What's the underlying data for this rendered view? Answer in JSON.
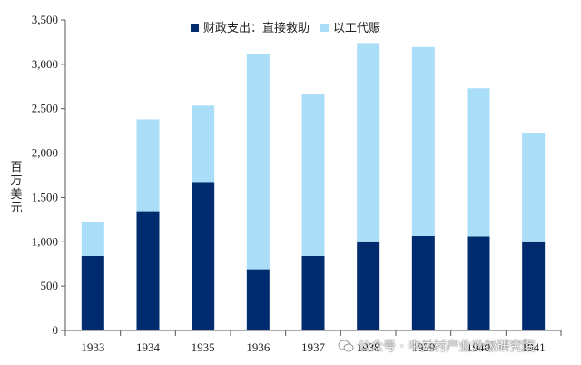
{
  "chart_data": {
    "type": "bar",
    "stacked": true,
    "categories": [
      "1933",
      "1934",
      "1935",
      "1936",
      "1937",
      "1938",
      "1939",
      "1940",
      "1941"
    ],
    "series": [
      {
        "name": "财政支出：直接救助",
        "color": "#002B6E",
        "values": [
          840,
          1345,
          1665,
          690,
          840,
          1005,
          1065,
          1060,
          1005
        ]
      },
      {
        "name": "以工代赈",
        "color": "#A9DDF8",
        "values": [
          380,
          1035,
          870,
          2430,
          1820,
          2235,
          2130,
          1670,
          1225
        ]
      }
    ],
    "ylabel": "百万美元",
    "ylim": [
      0,
      3500
    ],
    "yticks": [
      0,
      500,
      1000,
      1500,
      2000,
      2500,
      3000,
      3500
    ],
    "ytick_labels": [
      "0",
      "500",
      "1,000",
      "1,500",
      "2,000",
      "2,500",
      "3,000",
      "3,500"
    ],
    "grid": false,
    "legend_position": "top-center"
  },
  "watermark": {
    "text": "公众号 · 中关村产业升级研究院",
    "icon": "wechat-icon"
  }
}
